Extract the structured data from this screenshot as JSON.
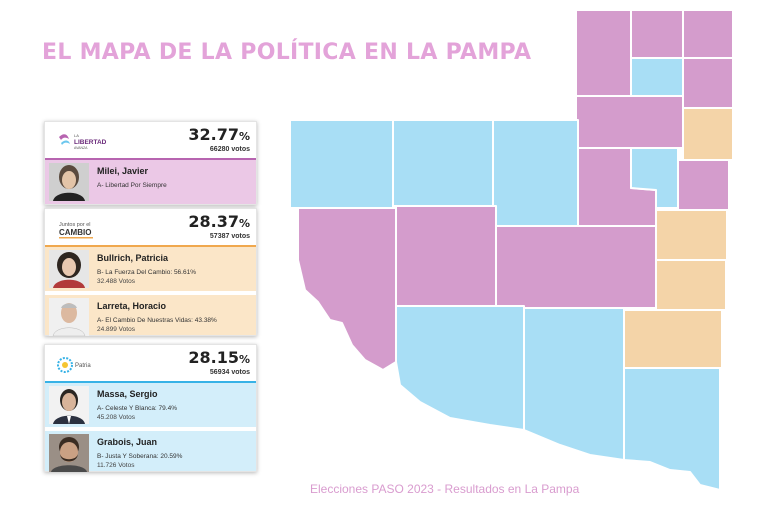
{
  "title": "EL MAPA DE LA POLÍTICA EN LA PAMPA",
  "footer": "Elecciones PASO 2023 - Resultados en La Pampa",
  "colors": {
    "libertad": "#d49ccc",
    "cambio": "#f4d4a8",
    "patria": "#a8def5",
    "libertad_accent": "#b764b0",
    "cambio_accent": "#f0a84e",
    "patria_accent": "#37b2e6"
  },
  "results": [
    {
      "logo_text": [
        "LA",
        "LIBERTAD",
        "AVANZA"
      ],
      "percentage": "32.77",
      "pct_sign": "%",
      "votes": "66280 votos",
      "candidates": [
        {
          "name": "Milei, Javier",
          "list": "A- Libertad Por Siempre",
          "votes": ""
        }
      ]
    },
    {
      "logo_text": [
        "Juntos por el",
        "CAMBIO"
      ],
      "percentage": "28.37",
      "pct_sign": "%",
      "votes": "57387 votos",
      "candidates": [
        {
          "name": "Bullrich, Patricia",
          "list": "B- La Fuerza Del Cambio: 56.61%",
          "votes": "32.488 Votos"
        },
        {
          "name": "Larreta, Horacio",
          "list": "A- El Cambio De Nuestras Vidas: 43.38%",
          "votes": "24.899 Votos"
        }
      ]
    },
    {
      "logo_text": [
        "Patria"
      ],
      "percentage": "28.15",
      "pct_sign": "%",
      "votes": "56934 votos",
      "candidates": [
        {
          "name": "Massa, Sergio",
          "list": "A- Celeste Y Blanca: 79.4%",
          "votes": "45.208 Votos"
        },
        {
          "name": "Grabois, Juan",
          "list": "B- Justa Y Soberana: 20.59%",
          "votes": "11.726 Votos"
        }
      ]
    }
  ],
  "map_departments": [
    {
      "party": "libertad"
    },
    {
      "party": "libertad"
    },
    {
      "party": "libertad"
    },
    {
      "party": "patria"
    },
    {
      "party": "libertad"
    },
    {
      "party": "libertad"
    },
    {
      "party": "cambio"
    },
    {
      "party": "libertad"
    },
    {
      "party": "patria"
    },
    {
      "party": "libertad"
    },
    {
      "party": "cambio"
    },
    {
      "party": "cambio"
    },
    {
      "party": "patria"
    },
    {
      "party": "patria"
    },
    {
      "party": "patria"
    },
    {
      "party": "libertad"
    },
    {
      "party": "libertad"
    },
    {
      "party": "libertad"
    },
    {
      "party": "patria"
    },
    {
      "party": "patria"
    },
    {
      "party": "cambio"
    },
    {
      "party": "patria"
    }
  ]
}
